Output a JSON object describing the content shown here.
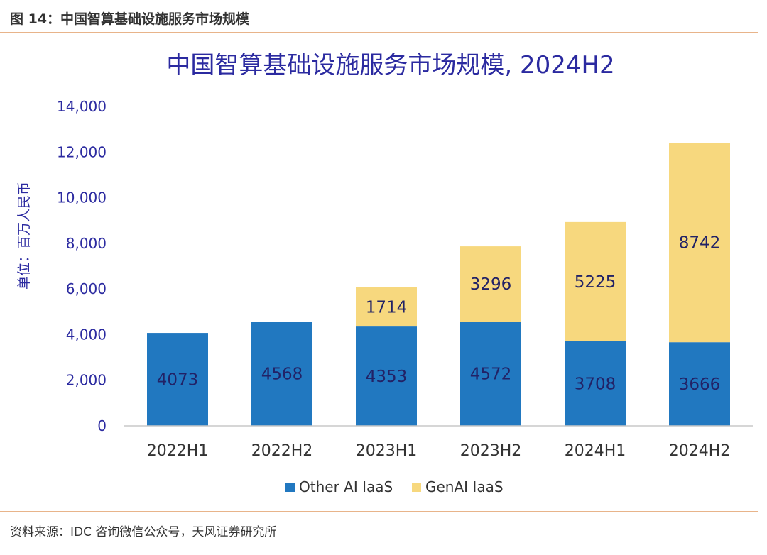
{
  "figure_caption": "图 14：中国智算基础设施服务市场规模",
  "source_note": "资料来源：IDC 咨询微信公众号，天风证券研究所",
  "colors": {
    "other_ai_iaas": "#2178c0",
    "genai_iaas": "#f7d87e",
    "title": "#2b2aa0",
    "axis_text": "#2b2aa0",
    "rule": "#e8b48a"
  },
  "chart_data": {
    "type": "bar",
    "stacked": true,
    "title": "中国智算基础设施服务市场规模, 2024H2",
    "ylabel": "单位：百万人民币",
    "xlabel": "",
    "ylim": [
      0,
      14000
    ],
    "yticks": [
      0,
      2000,
      4000,
      6000,
      8000,
      10000,
      12000,
      14000
    ],
    "ytick_labels": [
      "0",
      "2,000",
      "4,000",
      "6,000",
      "8,000",
      "10,000",
      "12,000",
      "14,000"
    ],
    "categories": [
      "2022H1",
      "2022H2",
      "2023H1",
      "2023H2",
      "2024H1",
      "2024H2"
    ],
    "series": [
      {
        "name": "Other AI IaaS",
        "values": [
          4073,
          4568,
          4353,
          4572,
          3708,
          3666
        ]
      },
      {
        "name": "GenAI IaaS",
        "values": [
          0,
          0,
          1714,
          3296,
          5225,
          8742
        ]
      }
    ],
    "grid": false,
    "legend_position": "bottom"
  }
}
